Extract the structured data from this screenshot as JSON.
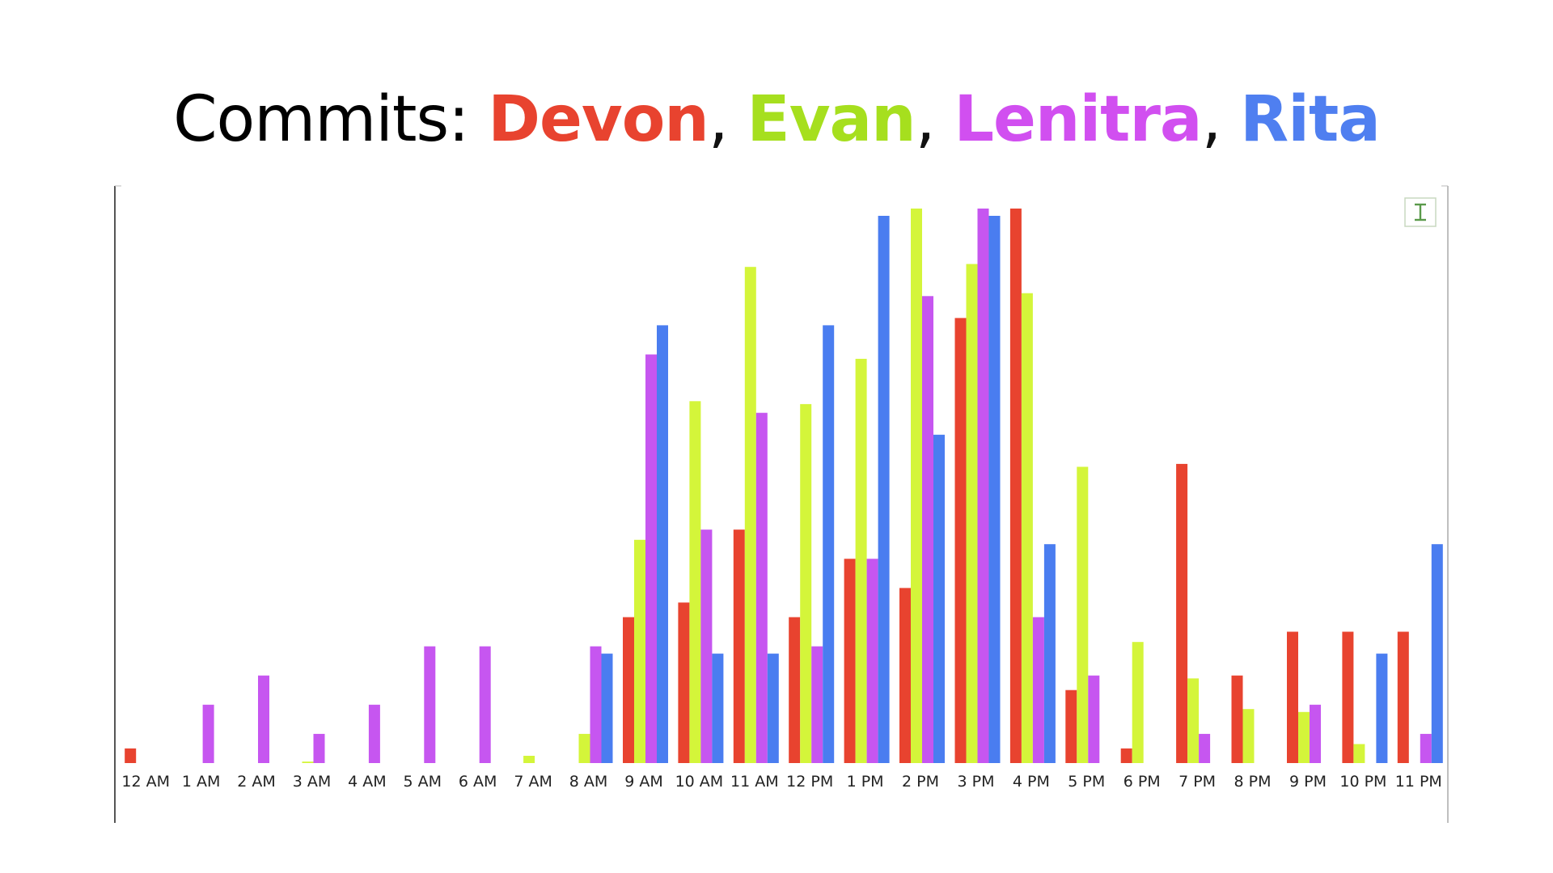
{
  "title": {
    "prefix": "Commits:",
    "names": [
      {
        "label": "Devon",
        "color": "#e8432f"
      },
      {
        "label": "Evan",
        "color": "#a6df1e"
      },
      {
        "label": "Lenitra",
        "color": "#d14ff0"
      },
      {
        "label": "Rita",
        "color": "#4f7ff0"
      }
    ],
    "separator": ","
  },
  "toolbar": {
    "icon": "text-cursor-icon"
  },
  "chart_data": {
    "type": "bar",
    "title": "Commits: Devon, Evan, Lenitra, Rita",
    "xlabel": "",
    "ylabel": "",
    "grid": false,
    "ylim": [
      0,
      38
    ],
    "categories": [
      "12 AM",
      "1 AM",
      "2 AM",
      "3 AM",
      "4 AM",
      "5 AM",
      "6 AM",
      "7 AM",
      "8 AM",
      "9 AM",
      "10 AM",
      "11 AM",
      "12 PM",
      "1 PM",
      "2 PM",
      "3 PM",
      "4 PM",
      "5 PM",
      "6 PM",
      "7 PM",
      "8 PM",
      "9 PM",
      "10 PM",
      "11 PM"
    ],
    "series": [
      {
        "name": "Devon",
        "color": "#e8432f",
        "values": [
          1,
          0,
          0,
          0,
          0,
          0,
          0,
          0,
          0,
          10,
          11,
          16,
          10,
          14,
          12,
          30.5,
          38,
          5,
          1,
          20.5,
          6,
          9,
          9,
          9
        ]
      },
      {
        "name": "Evan",
        "color": "#d4f53a",
        "values": [
          0,
          0,
          0,
          0.1,
          0,
          0,
          0,
          0.5,
          2,
          15.3,
          24.8,
          34,
          24.6,
          27.7,
          38,
          34.2,
          32.2,
          20.3,
          8.3,
          5.8,
          3.7,
          3.5,
          1.3,
          0
        ]
      },
      {
        "name": "Lenitra",
        "color": "#c656f0",
        "values": [
          0,
          4,
          6,
          2,
          4,
          8,
          8,
          0,
          8,
          28,
          16,
          24,
          8,
          14,
          32,
          38,
          10,
          6,
          0,
          2,
          0,
          4,
          0,
          2
        ]
      },
      {
        "name": "Rita",
        "color": "#4a7df0",
        "values": [
          0,
          0,
          0,
          0,
          0,
          0,
          0,
          0,
          7.5,
          30,
          7.5,
          7.5,
          30,
          37.5,
          22.5,
          37.5,
          15,
          0,
          0,
          0,
          0,
          0,
          7.5,
          15
        ]
      }
    ]
  }
}
